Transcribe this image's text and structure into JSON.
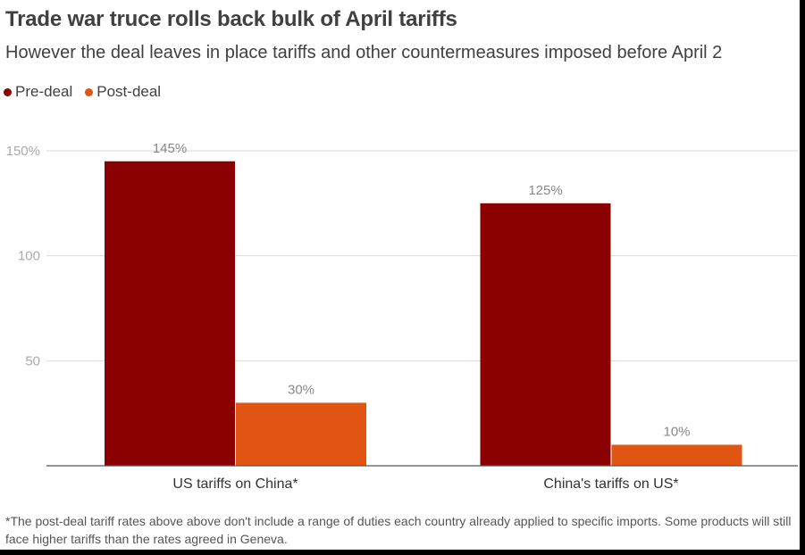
{
  "title": "Trade war truce rolls back bulk of April tariffs",
  "subtitle": "However the deal leaves in place tariffs and other countermeasures imposed before April 2",
  "legend": [
    {
      "label": "Pre-deal",
      "color": "#8b0000"
    },
    {
      "label": "Post-deal",
      "color": "#e05512"
    }
  ],
  "footnote": "*The post-deal tariff rates above above don't include a range of duties each country already applied to specific imports. Some products will still face higher tariffs than the rates agreed in Geneva.",
  "chart_data": {
    "type": "bar",
    "categories": [
      "US tariffs on China*",
      "China's tariffs on US*"
    ],
    "series": [
      {
        "name": "Pre-deal",
        "color": "#8b0000",
        "values": [
          145,
          125
        ],
        "labels": [
          "145%",
          "125%"
        ]
      },
      {
        "name": "Post-deal",
        "color": "#e05512",
        "values": [
          30,
          10
        ],
        "labels": [
          "30%",
          "10%"
        ]
      }
    ],
    "yticks": [
      {
        "value": 50,
        "label": "50"
      },
      {
        "value": 100,
        "label": "100"
      },
      {
        "value": 150,
        "label": "150%"
      }
    ],
    "ylim": [
      0,
      150
    ],
    "grid": true
  }
}
